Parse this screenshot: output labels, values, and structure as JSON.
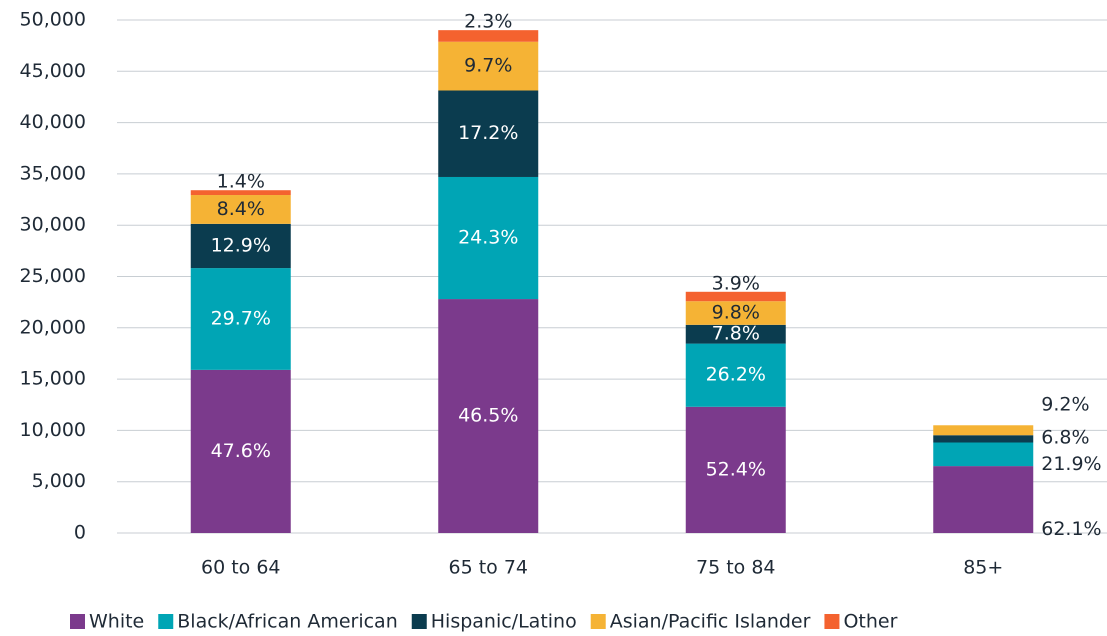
{
  "chart_data": {
    "type": "stacked_bar",
    "categories": [
      "60 to 64",
      "65 to 74",
      "75 to 84",
      "85+"
    ],
    "series": [
      {
        "name": "White",
        "color": "#7b3a8c",
        "values": [
          15900,
          22800,
          12300,
          6520
        ],
        "data_labels": [
          "47.6%",
          "46.5%",
          "52.4%",
          "62.1%"
        ]
      },
      {
        "name": "Black/African American",
        "color": "#00a5b5",
        "values": [
          9920,
          11900,
          6160,
          2300
        ],
        "data_labels": [
          "29.7%",
          "24.3%",
          "26.2%",
          "21.9%"
        ]
      },
      {
        "name": "Hispanic/Latino",
        "color": "#0b3c4f",
        "values": [
          4310,
          8430,
          1830,
          710
        ],
        "data_labels": [
          "12.9%",
          "17.2%",
          "7.8%",
          "6.8%"
        ]
      },
      {
        "name": "Asian/Pacific Islander",
        "color": "#f5b335",
        "values": [
          2810,
          4750,
          2300,
          970
        ],
        "data_labels": [
          "8.4%",
          "9.7%",
          "9.8%",
          "9.2%"
        ]
      },
      {
        "name": "Other",
        "color": "#f4622f",
        "values": [
          470,
          1130,
          920,
          0
        ],
        "data_labels": [
          "1.4%",
          "2.3%",
          "3.9%",
          null
        ]
      }
    ],
    "ylim": [
      0,
      50000
    ],
    "yticks": [
      0,
      {
        "value": 5000,
        "label": "5,000"
      },
      {
        "value": 10000,
        "label": "10,000"
      },
      {
        "value": 15000,
        "label": "15,000"
      },
      {
        "value": 20000,
        "label": "20,000"
      },
      {
        "value": 25000,
        "label": "25,000"
      },
      {
        "value": 30000,
        "label": "30,000"
      },
      {
        "value": 35000,
        "label": "35,000"
      },
      {
        "value": 40000,
        "label": "40,000"
      },
      {
        "value": 45000,
        "label": "45,000"
      },
      {
        "value": 50000,
        "label": "50,000"
      }
    ],
    "grid": true,
    "legend": "bottom"
  }
}
